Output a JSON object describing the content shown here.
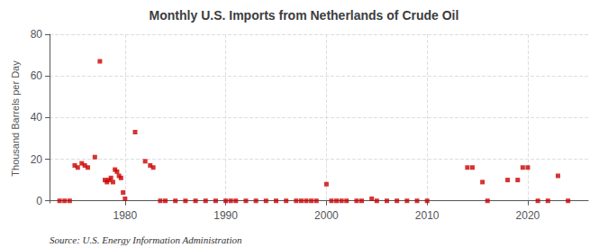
{
  "chart_data": {
    "type": "scatter",
    "title": "Monthly U.S. Imports from Netherlands of Crude Oil",
    "ylabel": "Thousand Barrels per Day",
    "annotations": [
      "Source: U.S. Energy Information Administration"
    ],
    "x": [
      1973.5,
      1974.0,
      1974.5,
      1975.0,
      1975.3,
      1975.7,
      1976.0,
      1976.3,
      1977.0,
      1977.5,
      1978.0,
      1978.2,
      1978.4,
      1978.6,
      1978.8,
      1979.0,
      1979.2,
      1979.4,
      1979.6,
      1979.8,
      1980.0,
      1981.0,
      1982.0,
      1982.5,
      1982.8,
      1983.5,
      1984.0,
      1985.0,
      1986.0,
      1987.0,
      1988.0,
      1989.0,
      1990.0,
      1990.5,
      1991.0,
      1992.0,
      1993.0,
      1994.0,
      1995.0,
      1996.0,
      1997.0,
      1997.5,
      1998.0,
      1998.5,
      1999.0,
      2000.0,
      2000.5,
      2001.0,
      2001.5,
      2002.0,
      2003.0,
      2003.5,
      2004.5,
      2005.0,
      2006.0,
      2007.0,
      2008.0,
      2009.0,
      2010.0,
      2014.0,
      2014.5,
      2015.5,
      2016.0,
      2018.0,
      2019.0,
      2019.5,
      2020.0,
      2021.0,
      2022.0,
      2023.0,
      2024.0
    ],
    "values": [
      0,
      0,
      0,
      17,
      16,
      18,
      17,
      16,
      21,
      67,
      10,
      9,
      10,
      11,
      9,
      15,
      14,
      12,
      11,
      4,
      1,
      33,
      19,
      17,
      16,
      0,
      0,
      0,
      0,
      0,
      0,
      0,
      0,
      0,
      0,
      0,
      0,
      0,
      0,
      0,
      0,
      0,
      0,
      0,
      0,
      8,
      0,
      0,
      0,
      0,
      0,
      0,
      1,
      0,
      0,
      0,
      0,
      0,
      0,
      16,
      16,
      9,
      0,
      10,
      10,
      16,
      16,
      0,
      0,
      12,
      0
    ],
    "color": "#cc0000",
    "marker": "square",
    "xlim": [
      1972.5,
      2026
    ],
    "xticks": [
      1980,
      1990,
      2000,
      2010,
      2020
    ],
    "ylim": [
      -1,
      80
    ],
    "yticks": [
      0,
      20,
      40,
      60,
      80
    ],
    "grid": true
  }
}
